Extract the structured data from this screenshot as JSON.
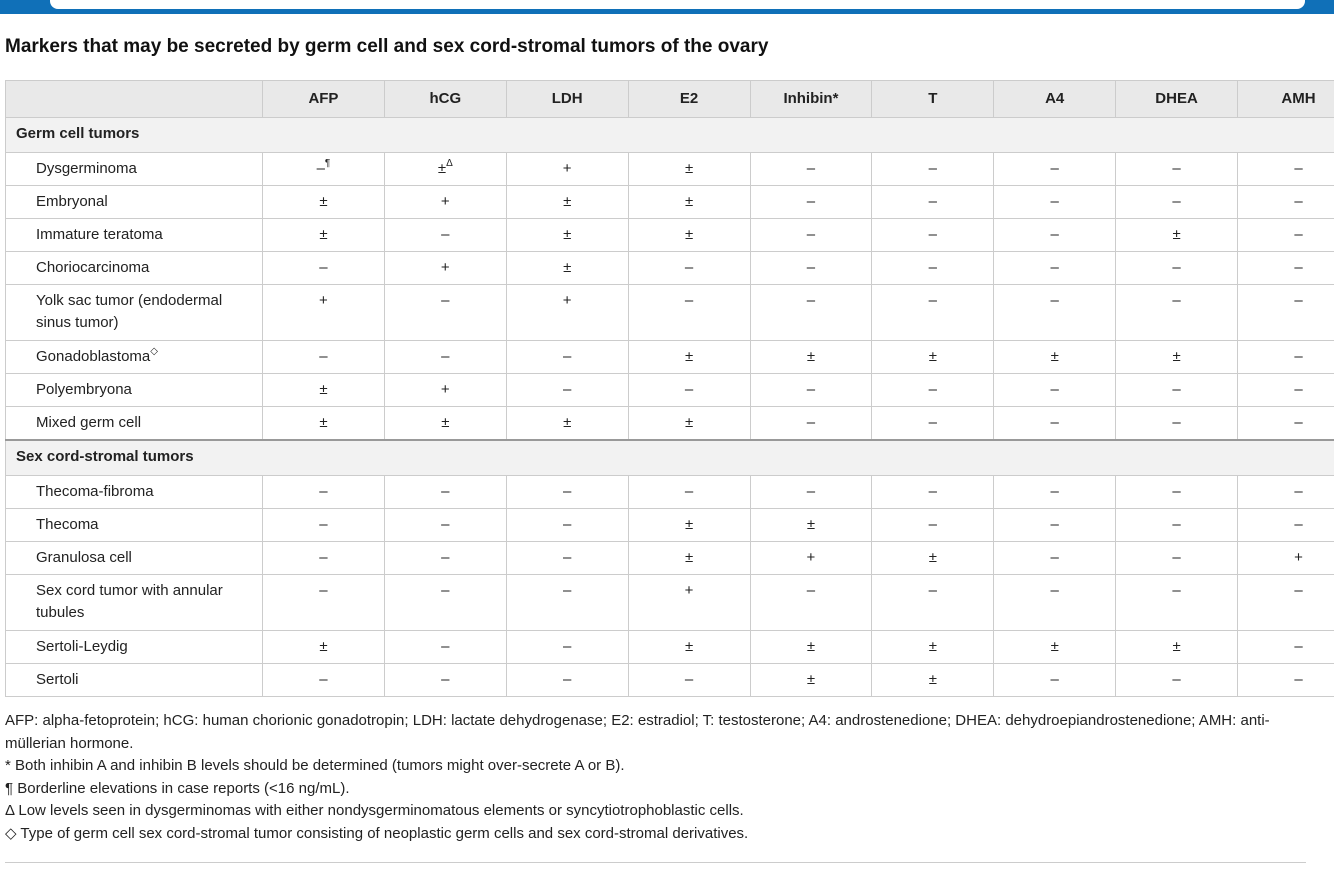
{
  "title": "Markers that may be secreted by germ cell and sex cord-stromal tumors of the ovary",
  "table": {
    "columns": [
      "AFP",
      "hCG",
      "LDH",
      "E2",
      "Inhibin*",
      "T",
      "A4",
      "DHEA",
      "AMH"
    ],
    "sections": [
      {
        "title": "Germ cell tumors",
        "rows": [
          {
            "label": "Dysgerminoma",
            "cells": [
              {
                "text": "–",
                "sup": "¶"
              },
              {
                "text": "±",
                "sup": "Δ"
              },
              "+",
              "±",
              "–",
              "–",
              "–",
              "–",
              "–"
            ]
          },
          {
            "label": "Embryonal",
            "cells": [
              "±",
              "+",
              "±",
              "±",
              "–",
              "–",
              "–",
              "–",
              "–"
            ]
          },
          {
            "label": "Immature teratoma",
            "cells": [
              "±",
              "–",
              "±",
              "±",
              "–",
              "–",
              "–",
              "±",
              "–"
            ]
          },
          {
            "label": "Choriocarcinoma",
            "cells": [
              "–",
              "+",
              "±",
              "–",
              "–",
              "–",
              "–",
              "–",
              "–"
            ]
          },
          {
            "label": "Yolk sac tumor (endodermal sinus tumor)",
            "cells": [
              "+",
              "–",
              "+",
              "–",
              "–",
              "–",
              "–",
              "–",
              "–"
            ]
          },
          {
            "label": "Gonadoblastoma",
            "label_sup": "◇",
            "cells": [
              "–",
              "–",
              "–",
              "±",
              "±",
              "±",
              "±",
              "±",
              "–"
            ]
          },
          {
            "label": "Polyembryona",
            "cells": [
              "±",
              "+",
              "–",
              "–",
              "–",
              "–",
              "–",
              "–",
              "–"
            ]
          },
          {
            "label": "Mixed germ cell",
            "cells": [
              "±",
              "±",
              "±",
              "±",
              "–",
              "–",
              "–",
              "–",
              "–"
            ]
          }
        ]
      },
      {
        "title": "Sex cord-stromal tumors",
        "rows": [
          {
            "label": "Thecoma-fibroma",
            "cells": [
              "–",
              "–",
              "–",
              "–",
              "–",
              "–",
              "–",
              "–",
              "–"
            ]
          },
          {
            "label": "Thecoma",
            "cells": [
              "–",
              "–",
              "–",
              "±",
              "±",
              "–",
              "–",
              "–",
              "–"
            ]
          },
          {
            "label": "Granulosa cell",
            "cells": [
              "–",
              "–",
              "–",
              "±",
              "+",
              "±",
              "–",
              "–",
              "+"
            ]
          },
          {
            "label": "Sex cord tumor with annular tubules",
            "cells": [
              "–",
              "–",
              "–",
              "+",
              "–",
              "–",
              "–",
              "–",
              "–"
            ]
          },
          {
            "label": "Sertoli-Leydig",
            "cells": [
              "±",
              "–",
              "–",
              "±",
              "±",
              "±",
              "±",
              "±",
              "–"
            ]
          },
          {
            "label": "Sertoli",
            "cells": [
              "–",
              "–",
              "–",
              "–",
              "±",
              "±",
              "–",
              "–",
              "–"
            ]
          }
        ]
      }
    ]
  },
  "footnotes": [
    "AFP: alpha-fetoprotein; hCG: human chorionic gonadotropin; LDH: lactate dehydrogenase; E2: estradiol; T: testosterone; A4: androstenedione; DHEA: dehydroepiandrostenedione; AMH: anti-müllerian hormone.",
    "* Both inhibin A and inhibin B levels should be determined (tumors might over-secrete A or B).",
    "¶ Borderline elevations in case reports (<16 ng/mL).",
    "Δ Low levels seen in dysgerminomas with either nondysgerminomatous elements or syncytiotrophoblastic cells.",
    "◇ Type of germ cell sex cord-stromal tumor consisting of neoplastic germ cells and sex cord-stromal derivatives."
  ]
}
